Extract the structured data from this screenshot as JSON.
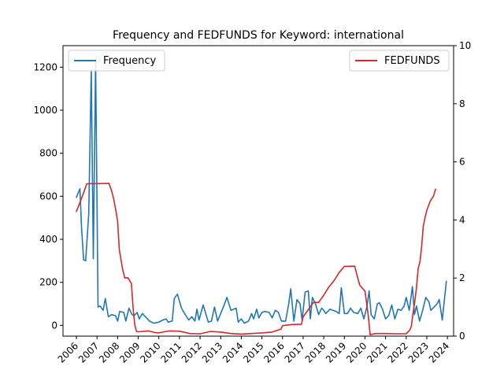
{
  "chart_data": {
    "type": "line",
    "title": "Frequency and FEDFUNDS for Keyword: international",
    "x_ticks": [
      "2006",
      "2007",
      "2008",
      "2009",
      "2010",
      "2011",
      "2012",
      "2013",
      "2014",
      "2015",
      "2016",
      "2017",
      "2018",
      "2019",
      "2020",
      "2021",
      "2022",
      "2023",
      "2024"
    ],
    "x_range": [
      2005.35,
      2024.3
    ],
    "y_left": {
      "range": [
        -50,
        1300
      ],
      "ticks": [
        0,
        200,
        400,
        600,
        800,
        1000,
        1200
      ]
    },
    "y_right": {
      "range": [
        0,
        10
      ],
      "ticks": [
        0,
        2,
        4,
        6,
        8,
        10
      ]
    },
    "grid": false,
    "series": [
      {
        "name": "Frequency",
        "axis": "left",
        "color": "#1f77b4",
        "points": [
          [
            2006.0,
            595
          ],
          [
            2006.17,
            635
          ],
          [
            2006.25,
            450
          ],
          [
            2006.35,
            305
          ],
          [
            2006.45,
            300
          ],
          [
            2006.6,
            520
          ],
          [
            2006.72,
            1190
          ],
          [
            2006.82,
            310
          ],
          [
            2006.93,
            1230
          ],
          [
            2007.05,
            85
          ],
          [
            2007.15,
            90
          ],
          [
            2007.3,
            70
          ],
          [
            2007.4,
            125
          ],
          [
            2007.55,
            40
          ],
          [
            2007.7,
            50
          ],
          [
            2007.9,
            45
          ],
          [
            2008.0,
            20
          ],
          [
            2008.1,
            65
          ],
          [
            2008.3,
            60
          ],
          [
            2008.4,
            20
          ],
          [
            2008.55,
            80
          ],
          [
            2008.7,
            50
          ],
          [
            2008.8,
            45
          ],
          [
            2008.95,
            60
          ],
          [
            2009.05,
            30
          ],
          [
            2009.2,
            55
          ],
          [
            2009.35,
            40
          ],
          [
            2009.55,
            20
          ],
          [
            2009.75,
            10
          ],
          [
            2010.0,
            15
          ],
          [
            2010.2,
            25
          ],
          [
            2010.35,
            30
          ],
          [
            2010.45,
            15
          ],
          [
            2010.65,
            20
          ],
          [
            2010.75,
            125
          ],
          [
            2010.9,
            145
          ],
          [
            2011.1,
            80
          ],
          [
            2011.25,
            55
          ],
          [
            2011.45,
            25
          ],
          [
            2011.6,
            40
          ],
          [
            2011.75,
            20
          ],
          [
            2011.85,
            75
          ],
          [
            2011.95,
            25
          ],
          [
            2012.15,
            95
          ],
          [
            2012.4,
            15
          ],
          [
            2012.55,
            20
          ],
          [
            2012.7,
            85
          ],
          [
            2012.85,
            20
          ],
          [
            2013.0,
            55
          ],
          [
            2013.15,
            90
          ],
          [
            2013.3,
            130
          ],
          [
            2013.5,
            70
          ],
          [
            2013.75,
            80
          ],
          [
            2013.85,
            15
          ],
          [
            2014.0,
            30
          ],
          [
            2014.15,
            10
          ],
          [
            2014.35,
            20
          ],
          [
            2014.5,
            55
          ],
          [
            2014.6,
            30
          ],
          [
            2014.75,
            75
          ],
          [
            2014.85,
            35
          ],
          [
            2015.0,
            60
          ],
          [
            2015.15,
            65
          ],
          [
            2015.35,
            60
          ],
          [
            2015.5,
            35
          ],
          [
            2015.65,
            70
          ],
          [
            2015.8,
            60
          ],
          [
            2015.95,
            20
          ],
          [
            2016.15,
            20
          ],
          [
            2016.3,
            100
          ],
          [
            2016.4,
            170
          ],
          [
            2016.55,
            20
          ],
          [
            2016.7,
            120
          ],
          [
            2016.85,
            100
          ],
          [
            2016.95,
            25
          ],
          [
            2017.1,
            155
          ],
          [
            2017.25,
            160
          ],
          [
            2017.35,
            30
          ],
          [
            2017.45,
            130
          ],
          [
            2017.6,
            100
          ],
          [
            2017.75,
            50
          ],
          [
            2017.9,
            80
          ],
          [
            2018.0,
            70
          ],
          [
            2018.1,
            55
          ],
          [
            2018.3,
            75
          ],
          [
            2018.45,
            70
          ],
          [
            2018.6,
            65
          ],
          [
            2018.75,
            55
          ],
          [
            2018.85,
            175
          ],
          [
            2019.0,
            55
          ],
          [
            2019.15,
            55
          ],
          [
            2019.3,
            80
          ],
          [
            2019.45,
            60
          ],
          [
            2019.65,
            55
          ],
          [
            2019.8,
            80
          ],
          [
            2019.95,
            30
          ],
          [
            2020.1,
            90
          ],
          [
            2020.2,
            160
          ],
          [
            2020.3,
            50
          ],
          [
            2020.45,
            30
          ],
          [
            2020.6,
            100
          ],
          [
            2020.7,
            105
          ],
          [
            2020.85,
            75
          ],
          [
            2021.0,
            30
          ],
          [
            2021.15,
            45
          ],
          [
            2021.3,
            95
          ],
          [
            2021.45,
            30
          ],
          [
            2021.6,
            75
          ],
          [
            2021.75,
            70
          ],
          [
            2021.9,
            90
          ],
          [
            2022.0,
            130
          ],
          [
            2022.15,
            70
          ],
          [
            2022.3,
            180
          ],
          [
            2022.4,
            50
          ],
          [
            2022.5,
            90
          ],
          [
            2022.65,
            20
          ],
          [
            2022.8,
            70
          ],
          [
            2022.95,
            130
          ],
          [
            2023.1,
            110
          ],
          [
            2023.2,
            70
          ],
          [
            2023.35,
            85
          ],
          [
            2023.5,
            100
          ],
          [
            2023.6,
            120
          ],
          [
            2023.75,
            25
          ],
          [
            2023.95,
            205
          ]
        ]
      },
      {
        "name": "FEDFUNDS",
        "axis": "right",
        "color": "#d62728",
        "points": [
          [
            2006.0,
            4.29
          ],
          [
            2006.17,
            4.6
          ],
          [
            2006.33,
            4.9
          ],
          [
            2006.5,
            5.24
          ],
          [
            2006.67,
            5.25
          ],
          [
            2007.0,
            5.25
          ],
          [
            2007.58,
            5.26
          ],
          [
            2007.7,
            5.02
          ],
          [
            2007.8,
            4.76
          ],
          [
            2007.92,
            4.3
          ],
          [
            2008.0,
            3.94
          ],
          [
            2008.08,
            2.98
          ],
          [
            2008.17,
            2.61
          ],
          [
            2008.25,
            2.28
          ],
          [
            2008.35,
            2.0
          ],
          [
            2008.5,
            2.01
          ],
          [
            2008.67,
            1.81
          ],
          [
            2008.75,
            0.97
          ],
          [
            2008.83,
            0.39
          ],
          [
            2008.92,
            0.16
          ],
          [
            2009.0,
            0.15
          ],
          [
            2009.5,
            0.18
          ],
          [
            2009.85,
            0.12
          ],
          [
            2010.0,
            0.11
          ],
          [
            2010.5,
            0.18
          ],
          [
            2011.0,
            0.17
          ],
          [
            2011.5,
            0.09
          ],
          [
            2012.0,
            0.08
          ],
          [
            2012.5,
            0.16
          ],
          [
            2013.0,
            0.14
          ],
          [
            2013.5,
            0.09
          ],
          [
            2014.0,
            0.07
          ],
          [
            2014.5,
            0.09
          ],
          [
            2015.0,
            0.11
          ],
          [
            2015.5,
            0.14
          ],
          [
            2015.92,
            0.24
          ],
          [
            2016.0,
            0.36
          ],
          [
            2016.5,
            0.4
          ],
          [
            2016.92,
            0.41
          ],
          [
            2017.0,
            0.66
          ],
          [
            2017.25,
            0.91
          ],
          [
            2017.5,
            1.16
          ],
          [
            2017.75,
            1.16
          ],
          [
            2018.0,
            1.41
          ],
          [
            2018.25,
            1.69
          ],
          [
            2018.5,
            1.91
          ],
          [
            2018.75,
            2.19
          ],
          [
            2019.0,
            2.4
          ],
          [
            2019.5,
            2.41
          ],
          [
            2019.6,
            2.13
          ],
          [
            2019.75,
            1.75
          ],
          [
            2020.0,
            1.55
          ],
          [
            2020.17,
            0.65
          ],
          [
            2020.25,
            0.05
          ],
          [
            2020.5,
            0.09
          ],
          [
            2021.0,
            0.09
          ],
          [
            2021.5,
            0.08
          ],
          [
            2022.0,
            0.08
          ],
          [
            2022.17,
            0.2
          ],
          [
            2022.25,
            0.33
          ],
          [
            2022.33,
            0.77
          ],
          [
            2022.42,
            1.21
          ],
          [
            2022.5,
            1.68
          ],
          [
            2022.58,
            2.33
          ],
          [
            2022.67,
            2.56
          ],
          [
            2022.75,
            3.08
          ],
          [
            2022.83,
            3.78
          ],
          [
            2022.92,
            4.1
          ],
          [
            2023.0,
            4.33
          ],
          [
            2023.17,
            4.65
          ],
          [
            2023.33,
            4.83
          ],
          [
            2023.42,
            5.06
          ]
        ]
      }
    ],
    "legend": [
      {
        "label": "Frequency",
        "placement": "upper-left",
        "color": "#1f77b4"
      },
      {
        "label": "FEDFUNDS",
        "placement": "upper-right",
        "color": "#d62728"
      }
    ]
  }
}
